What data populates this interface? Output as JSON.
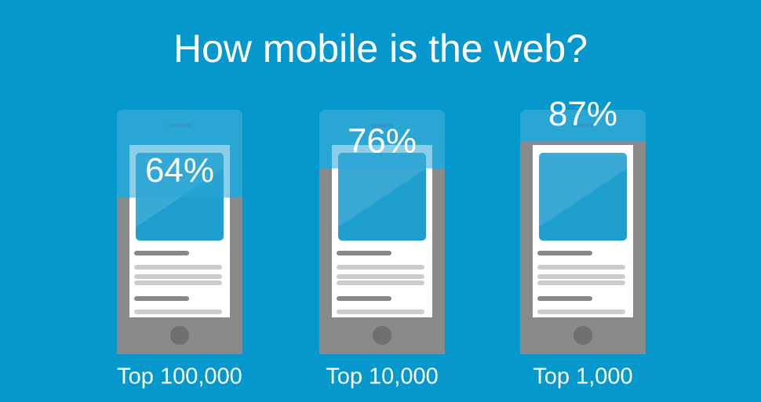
{
  "chart_data": {
    "type": "phone-fill",
    "title": "How mobile is the web?",
    "categories": [
      "Top 100,000",
      "Top 10,000",
      "Top 1,000"
    ],
    "values": [
      64,
      76,
      87
    ],
    "value_labels": [
      "64%",
      "76%",
      "87%"
    ],
    "ylim": [
      0,
      100
    ],
    "color": "#8a8a8a"
  }
}
